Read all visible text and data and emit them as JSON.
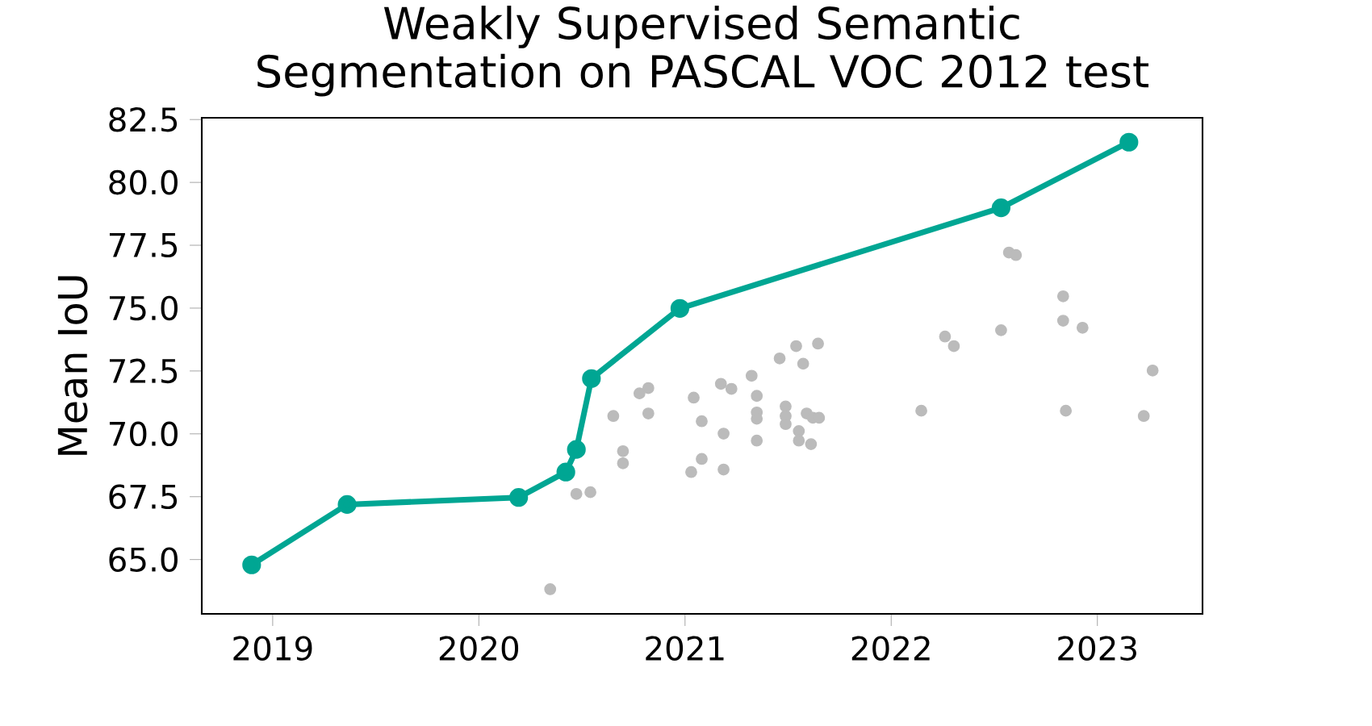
{
  "chart_data": {
    "type": "line",
    "title": "Weakly Supervised Semantic Segmentation on PASCAL VOC 2012 test",
    "ylabel": "Mean IoU",
    "xlim": [
      2018.656,
      2023.51
    ],
    "ylim": [
      62.84,
      82.57
    ],
    "xticks": [
      2019,
      2020,
      2021,
      2022,
      2023
    ],
    "yticks": [
      {
        "value": 65,
        "label": "65.0"
      },
      {
        "value": 67.5,
        "label": "67.5"
      },
      {
        "value": 70,
        "label": "70.0"
      },
      {
        "value": 72.5,
        "label": "72.5"
      },
      {
        "value": 75,
        "label": "75.0"
      },
      {
        "value": 77.5,
        "label": "77.5"
      },
      {
        "value": 80,
        "label": "80.0"
      },
      {
        "value": 82.5,
        "label": "82.5"
      }
    ],
    "grid": false,
    "marker": "circle",
    "series": [
      {
        "type": "scatter",
        "color": "#bbbbbb",
        "x": [
          2020.346,
          2020.473,
          2020.541,
          2020.652,
          2020.699,
          2020.699,
          2020.779,
          2020.822,
          2020.822,
          2021.03,
          2021.042,
          2021.081,
          2021.081,
          2021.174,
          2021.187,
          2021.187,
          2021.225,
          2021.323,
          2021.348,
          2021.348,
          2021.348,
          2021.348,
          2021.459,
          2021.488,
          2021.488,
          2021.488,
          2021.539,
          2021.552,
          2021.552,
          2021.573,
          2021.59,
          2021.611,
          2021.62,
          2021.645,
          2021.65,
          2022.146,
          2022.261,
          2022.304,
          2022.533,
          2022.571,
          2022.605,
          2022.834,
          2022.834,
          2022.847,
          2022.928,
          2023.225,
          2023.268
        ],
        "values": [
          63.82,
          67.61,
          67.68,
          70.71,
          69.31,
          68.83,
          71.61,
          71.82,
          70.81,
          68.48,
          71.44,
          70.5,
          69.0,
          71.99,
          70.01,
          68.58,
          71.79,
          72.31,
          71.51,
          70.85,
          70.6,
          69.73,
          73.0,
          71.09,
          70.71,
          70.39,
          73.49,
          70.11,
          69.73,
          72.79,
          70.81,
          69.59,
          70.64,
          73.59,
          70.64,
          70.92,
          73.87,
          73.49,
          74.12,
          77.21,
          77.11,
          75.47,
          74.5,
          70.92,
          74.22,
          70.71,
          72.52
        ]
      },
      {
        "color": "#00a693",
        "x": [
          2018.898,
          2019.361,
          2020.193,
          2020.422,
          2020.473,
          2020.546,
          2020.975,
          2022.533,
          2023.153
        ],
        "values": [
          64.79,
          67.19,
          67.47,
          68.48,
          69.38,
          72.2,
          74.99,
          78.99,
          81.6
        ]
      }
    ]
  }
}
